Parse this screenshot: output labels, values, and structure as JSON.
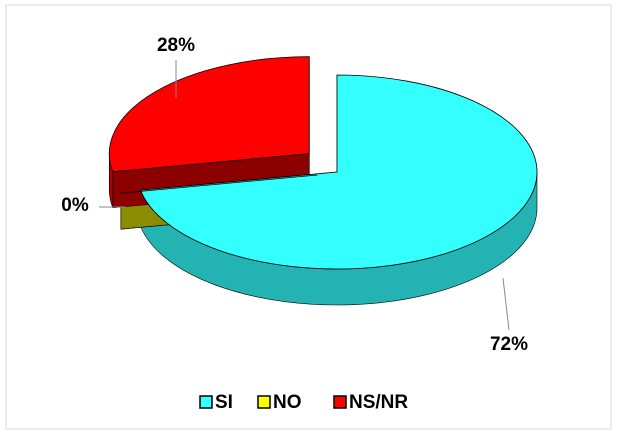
{
  "chart_data": {
    "type": "pie",
    "categories": [
      "SI",
      "NO",
      "NS/NR"
    ],
    "values": [
      72,
      0,
      28
    ],
    "value_labels": [
      "72%",
      "0%",
      "28%"
    ],
    "colors": [
      "#33ffff",
      "#ffff00",
      "#ff0000"
    ],
    "legend": "bottom"
  }
}
